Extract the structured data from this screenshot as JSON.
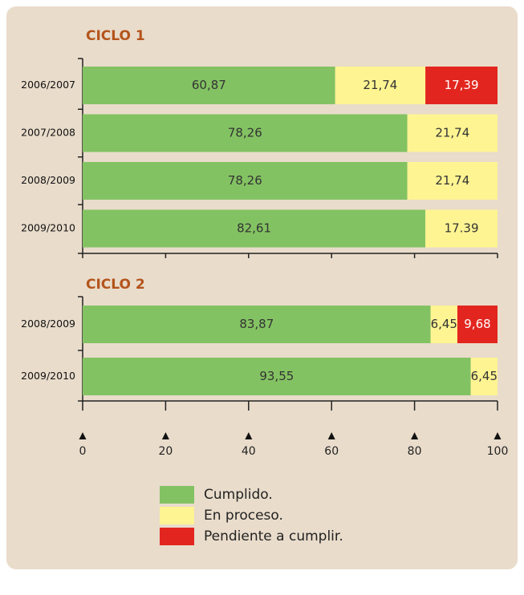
{
  "chart_data": [
    {
      "type": "bar",
      "orientation": "horizontal",
      "stacked": true,
      "title": "CICLO 1",
      "categories": [
        "2006/2007",
        "2007/2008",
        "2008/2009",
        "2009/2010"
      ],
      "series": [
        {
          "name": "Cumplido.",
          "color": "#83c262",
          "values": [
            60.87,
            78.26,
            78.26,
            82.61
          ],
          "value_labels": [
            "60,87",
            "78,26",
            "78,26",
            "82,61"
          ]
        },
        {
          "name": "En proceso.",
          "color": "#fef492",
          "values": [
            21.74,
            21.74,
            21.74,
            17.39
          ],
          "value_labels": [
            "21,74",
            "21,74",
            "21,74",
            "17.39"
          ]
        },
        {
          "name": "Pendiente a cumplir.",
          "color": "#e2261f",
          "values": [
            17.39,
            null,
            null,
            null
          ],
          "value_labels": [
            "17,39",
            null,
            null,
            null
          ]
        }
      ],
      "xlim": [
        0,
        100
      ],
      "xticks": [
        0,
        20,
        40,
        60,
        80,
        100
      ]
    },
    {
      "type": "bar",
      "orientation": "horizontal",
      "stacked": true,
      "title": "CICLO 2",
      "categories": [
        "2008/2009",
        "2009/2010"
      ],
      "series": [
        {
          "name": "Cumplido.",
          "color": "#83c262",
          "values": [
            83.87,
            93.55
          ],
          "value_labels": [
            "83,87",
            "93,55"
          ]
        },
        {
          "name": "En proceso.",
          "color": "#fef492",
          "values": [
            6.45,
            6.45
          ],
          "value_labels": [
            "6,45",
            "6,45"
          ]
        },
        {
          "name": "Pendiente a cumplir.",
          "color": "#e2261f",
          "values": [
            9.68,
            null
          ],
          "value_labels": [
            "9,68",
            null
          ]
        }
      ],
      "xlim": [
        0,
        100
      ],
      "xticks": [
        0,
        20,
        40,
        60,
        80,
        100
      ]
    }
  ]
}
